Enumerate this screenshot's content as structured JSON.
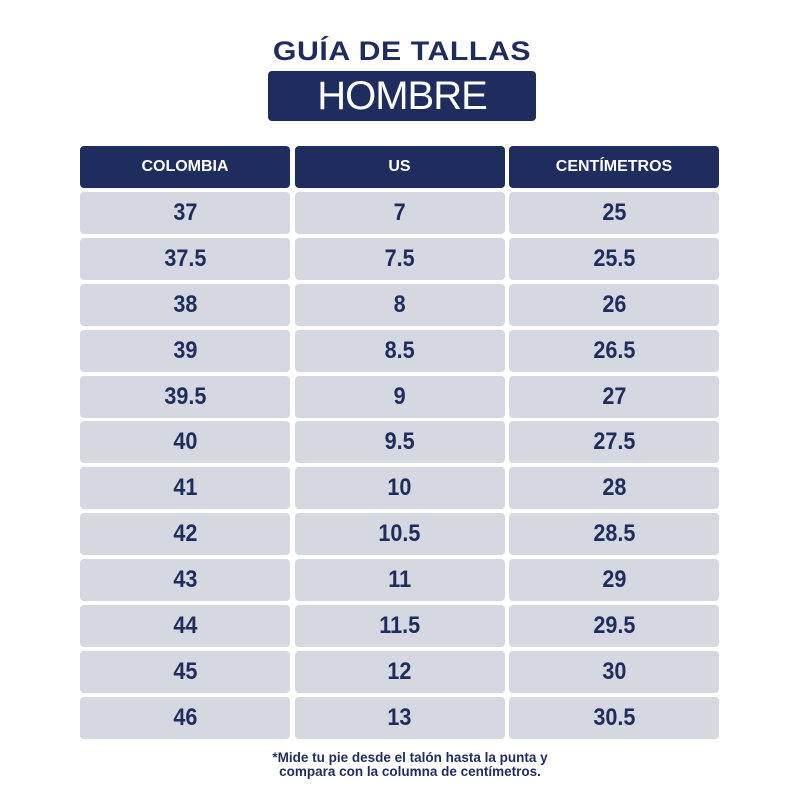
{
  "title": "GUÍA DE TALLAS",
  "subtitle": "HOMBRE",
  "colors": {
    "navy": "#1f2d5e",
    "cell": "#d5d8e1"
  },
  "table": {
    "headers": [
      "COLOMBIA",
      "US",
      "CENTÍMETROS"
    ],
    "rows": [
      [
        "37",
        "7",
        "25"
      ],
      [
        "37.5",
        "7.5",
        "25.5"
      ],
      [
        "38",
        "8",
        "26"
      ],
      [
        "39",
        "8.5",
        "26.5"
      ],
      [
        "39.5",
        "9",
        "27"
      ],
      [
        "40",
        "9.5",
        "27.5"
      ],
      [
        "41",
        "10",
        "28"
      ],
      [
        "42",
        "10.5",
        "28.5"
      ],
      [
        "43",
        "11",
        "29"
      ],
      [
        "44",
        "11.5",
        "29.5"
      ],
      [
        "45",
        "12",
        "30"
      ],
      [
        "46",
        "13",
        "30.5"
      ]
    ]
  },
  "note": {
    "line1": "*Mide tu pie desde el talón hasta la punta y",
    "line2": "compara con la columna de centímetros."
  }
}
